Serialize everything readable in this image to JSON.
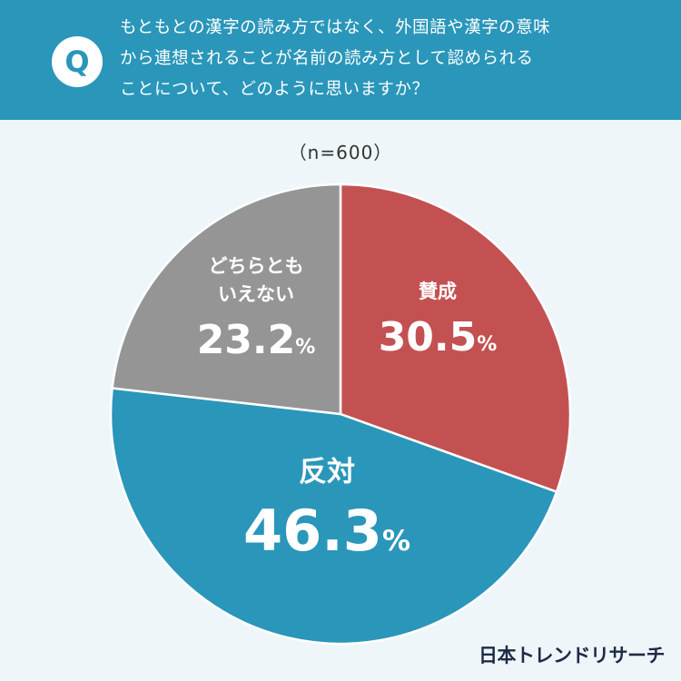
{
  "header": {
    "badge": "Q",
    "lines": [
      "もともとの漢字の読み方ではなく、外国語や漢字の意味",
      "から連想されることが名前の読み方として認められる",
      "ことについて、どのように思いますか？"
    ]
  },
  "sample_size": "（n=600）",
  "brand": "日本トレンドリサーチ",
  "colors": {
    "header_bg": "#2a96ba",
    "agree": "#c45152",
    "oppose": "#2a96ba",
    "neutral": "#959595"
  },
  "chart_data": {
    "type": "pie",
    "unit": "%",
    "slices": [
      {
        "label": "賛成",
        "value": 30.5,
        "value_text": "30.5",
        "color": "#c45152"
      },
      {
        "label": "反対",
        "value": 46.3,
        "value_text": "46.3",
        "color": "#2a96ba"
      },
      {
        "label": "どちらとも\nいえない",
        "value": 23.2,
        "value_text": "23.2",
        "color": "#959595"
      }
    ]
  }
}
